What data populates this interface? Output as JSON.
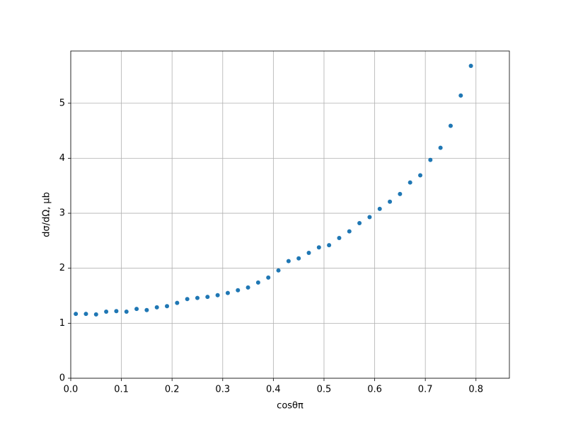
{
  "chart_data": {
    "type": "scatter",
    "xlabel": "cosθπ",
    "ylabel": "dσ/dΩ, μb",
    "x": [
      0.01,
      0.03,
      0.05,
      0.07,
      0.09,
      0.11,
      0.13,
      0.15,
      0.17,
      0.19,
      0.21,
      0.23,
      0.25,
      0.27,
      0.29,
      0.31,
      0.33,
      0.35,
      0.37,
      0.39,
      0.41,
      0.43,
      0.45,
      0.47,
      0.49,
      0.51,
      0.53,
      0.55,
      0.57,
      0.59,
      0.61,
      0.63,
      0.65,
      0.67,
      0.69,
      0.71,
      0.73,
      0.75,
      0.77,
      0.79
    ],
    "values": [
      1.17,
      1.17,
      1.16,
      1.21,
      1.22,
      1.21,
      1.26,
      1.24,
      1.29,
      1.31,
      1.37,
      1.44,
      1.46,
      1.48,
      1.51,
      1.55,
      1.6,
      1.65,
      1.74,
      1.83,
      1.96,
      2.13,
      2.18,
      2.28,
      2.38,
      2.42,
      2.55,
      2.67,
      2.82,
      2.93,
      3.08,
      3.21,
      3.35,
      3.56,
      3.69,
      3.97,
      4.19,
      4.59,
      5.14,
      5.68
    ],
    "color": "#1f77b4",
    "xlim": [
      0,
      0.866
    ],
    "ylim": [
      0,
      5.95
    ],
    "xticks": [
      {
        "value": 0,
        "label": "0.0"
      },
      0.1,
      0.2,
      0.3,
      0.4,
      0.5,
      0.6,
      0.7,
      0.8
    ],
    "yticks": [
      0,
      1,
      2,
      3,
      4,
      5
    ],
    "grid": true
  }
}
